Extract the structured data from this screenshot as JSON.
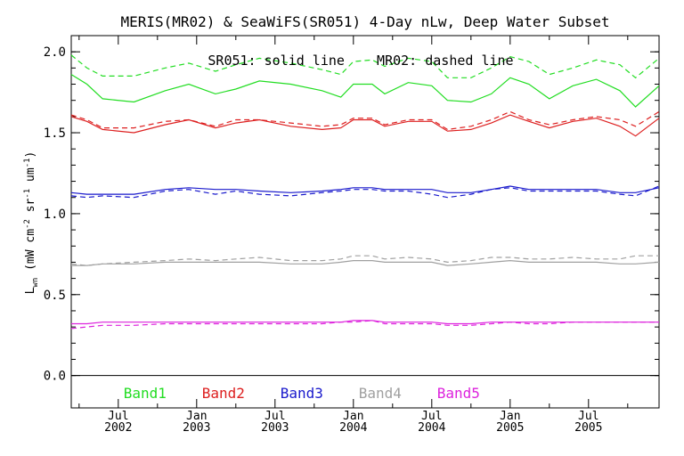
{
  "chart_data": {
    "type": "line",
    "title": "MERIS(MR02) & SeaWiFS(SR051) 4-Day nLw, Deep Water Subset",
    "subtitle": "SR051: solid line    MR02: dashed line",
    "ylabel": "L",
    "ylabel_sub": "wn",
    "ylabel_units": "(mW cm",
    "ylabel_units_2": "sr",
    "ylabel_units_3": "um",
    "ylabel_units_end": ")",
    "ylabel_exp_a": "-2",
    "ylabel_exp_b": "-1",
    "ylabel_exp_c": "-1",
    "ylim": [
      -0.2,
      2.1
    ],
    "xlim": [
      2002.2,
      2005.95
    ],
    "yticks": [
      {
        "v": 0.0,
        "label": "0.0"
      },
      {
        "v": 0.5,
        "label": "0.5"
      },
      {
        "v": 1.0,
        "label": "1.0"
      },
      {
        "v": 1.5,
        "label": "1.5"
      },
      {
        "v": 2.0,
        "label": "2.0"
      }
    ],
    "xticks_major": [
      {
        "v": 2002.5,
        "month": "Jul",
        "year": "2002"
      },
      {
        "v": 2003.0,
        "month": "Jan",
        "year": "2003"
      },
      {
        "v": 2003.5,
        "month": "Jul",
        "year": "2003"
      },
      {
        "v": 2004.0,
        "month": "Jan",
        "year": "2004"
      },
      {
        "v": 2004.5,
        "month": "Jul",
        "year": "2004"
      },
      {
        "v": 2005.0,
        "month": "Jan",
        "year": "2005"
      },
      {
        "v": 2005.5,
        "month": "Jul",
        "year": "2005"
      }
    ],
    "xticks_minor": [
      2002.25,
      2002.75,
      2003.25,
      2003.75,
      2004.25,
      2004.75,
      2005.25,
      2005.75
    ],
    "band_labels": [
      {
        "name": "Band1",
        "color": "#22dd22",
        "x": 2002.5
      },
      {
        "name": "Band2",
        "color": "#dd2020",
        "x": 2003.0
      },
      {
        "name": "Band3",
        "color": "#1a1acc",
        "x": 2003.5
      },
      {
        "name": "Band4",
        "color": "#a0a0a0",
        "x": 2004.0
      },
      {
        "name": "Band5",
        "color": "#dd22dd",
        "x": 2004.5
      }
    ],
    "x": [
      2002.2,
      2002.3,
      2002.4,
      2002.6,
      2002.8,
      2002.95,
      2003.12,
      2003.25,
      2003.4,
      2003.6,
      2003.8,
      2003.92,
      2004.0,
      2004.12,
      2004.2,
      2004.35,
      2004.5,
      2004.6,
      2004.75,
      2004.88,
      2005.0,
      2005.12,
      2005.25,
      2005.4,
      2005.55,
      2005.7,
      2005.8,
      2005.95
    ],
    "series": [
      {
        "band": 1,
        "line": "solid",
        "color": "#22dd22",
        "values": [
          1.86,
          1.8,
          1.71,
          1.69,
          1.76,
          1.8,
          1.74,
          1.77,
          1.82,
          1.8,
          1.76,
          1.72,
          1.8,
          1.8,
          1.74,
          1.81,
          1.79,
          1.7,
          1.69,
          1.74,
          1.84,
          1.8,
          1.71,
          1.79,
          1.83,
          1.76,
          1.66,
          1.79
        ]
      },
      {
        "band": 1,
        "line": "dashed",
        "color": "#22dd22",
        "values": [
          1.98,
          1.9,
          1.85,
          1.85,
          1.9,
          1.93,
          1.88,
          1.92,
          1.96,
          1.93,
          1.89,
          1.86,
          1.94,
          1.95,
          1.91,
          1.96,
          1.94,
          1.84,
          1.84,
          1.9,
          1.97,
          1.94,
          1.86,
          1.9,
          1.95,
          1.92,
          1.84,
          1.96
        ]
      },
      {
        "band": 2,
        "line": "solid",
        "color": "#dd2020",
        "values": [
          1.6,
          1.57,
          1.52,
          1.5,
          1.55,
          1.58,
          1.53,
          1.56,
          1.58,
          1.54,
          1.52,
          1.53,
          1.58,
          1.58,
          1.54,
          1.57,
          1.57,
          1.51,
          1.52,
          1.56,
          1.61,
          1.57,
          1.53,
          1.57,
          1.59,
          1.54,
          1.48,
          1.59
        ]
      },
      {
        "band": 2,
        "line": "dashed",
        "color": "#dd2020",
        "values": [
          1.61,
          1.58,
          1.53,
          1.53,
          1.57,
          1.58,
          1.54,
          1.58,
          1.58,
          1.56,
          1.54,
          1.55,
          1.59,
          1.59,
          1.55,
          1.58,
          1.58,
          1.52,
          1.54,
          1.58,
          1.63,
          1.58,
          1.55,
          1.58,
          1.6,
          1.58,
          1.54,
          1.63
        ]
      },
      {
        "band": 3,
        "line": "solid",
        "color": "#1a1acc",
        "values": [
          1.13,
          1.12,
          1.12,
          1.12,
          1.15,
          1.16,
          1.15,
          1.15,
          1.14,
          1.13,
          1.14,
          1.15,
          1.16,
          1.16,
          1.15,
          1.15,
          1.15,
          1.13,
          1.13,
          1.15,
          1.17,
          1.15,
          1.15,
          1.15,
          1.15,
          1.13,
          1.13,
          1.16
        ]
      },
      {
        "band": 3,
        "line": "dashed",
        "color": "#1a1acc",
        "values": [
          1.11,
          1.1,
          1.11,
          1.1,
          1.14,
          1.15,
          1.12,
          1.14,
          1.12,
          1.11,
          1.13,
          1.14,
          1.15,
          1.15,
          1.14,
          1.14,
          1.12,
          1.1,
          1.12,
          1.15,
          1.16,
          1.14,
          1.14,
          1.14,
          1.14,
          1.12,
          1.11,
          1.17
        ]
      },
      {
        "band": 4,
        "line": "solid",
        "color": "#a0a0a0",
        "values": [
          0.68,
          0.68,
          0.69,
          0.69,
          0.7,
          0.7,
          0.7,
          0.7,
          0.7,
          0.69,
          0.69,
          0.7,
          0.71,
          0.71,
          0.7,
          0.7,
          0.7,
          0.68,
          0.69,
          0.7,
          0.71,
          0.7,
          0.7,
          0.7,
          0.7,
          0.69,
          0.69,
          0.7
        ]
      },
      {
        "band": 4,
        "line": "dashed",
        "color": "#a0a0a0",
        "values": [
          0.69,
          0.68,
          0.69,
          0.7,
          0.71,
          0.72,
          0.71,
          0.72,
          0.73,
          0.71,
          0.71,
          0.72,
          0.74,
          0.74,
          0.72,
          0.73,
          0.72,
          0.7,
          0.71,
          0.73,
          0.73,
          0.72,
          0.72,
          0.73,
          0.72,
          0.72,
          0.74,
          0.74
        ]
      },
      {
        "band": 5,
        "line": "solid",
        "color": "#dd22dd",
        "values": [
          0.32,
          0.32,
          0.33,
          0.33,
          0.33,
          0.33,
          0.33,
          0.33,
          0.33,
          0.33,
          0.33,
          0.33,
          0.34,
          0.34,
          0.33,
          0.33,
          0.33,
          0.32,
          0.32,
          0.33,
          0.33,
          0.33,
          0.33,
          0.33,
          0.33,
          0.33,
          0.33,
          0.33
        ]
      },
      {
        "band": 5,
        "line": "dashed",
        "color": "#dd22dd",
        "values": [
          0.29,
          0.3,
          0.31,
          0.31,
          0.32,
          0.32,
          0.32,
          0.32,
          0.32,
          0.32,
          0.32,
          0.33,
          0.33,
          0.34,
          0.32,
          0.32,
          0.32,
          0.31,
          0.31,
          0.32,
          0.33,
          0.32,
          0.32,
          0.33,
          0.33,
          0.33,
          0.33,
          0.33
        ]
      }
    ],
    "grid": false,
    "legend": "bottom"
  }
}
